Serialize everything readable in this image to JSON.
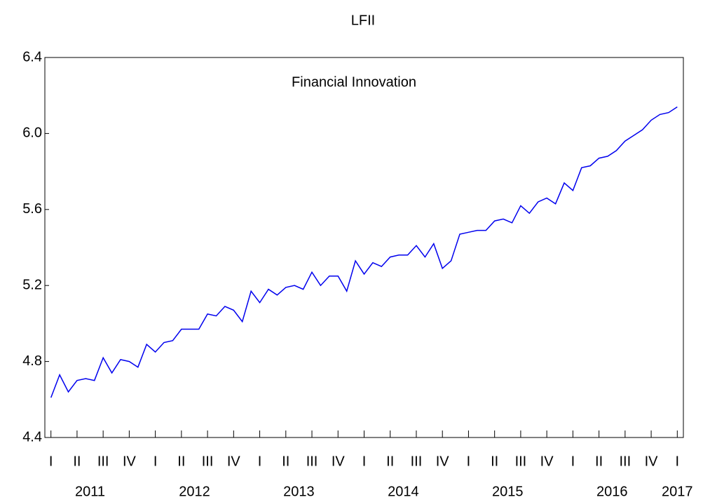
{
  "chart_data": {
    "type": "line",
    "title": "LFII",
    "annotation": "Financial Innovation",
    "series": [
      {
        "name": "LFII",
        "color": "#0000ee",
        "values": [
          4.61,
          4.73,
          4.64,
          4.7,
          4.71,
          4.7,
          4.82,
          4.74,
          4.81,
          4.8,
          4.77,
          4.89,
          4.85,
          4.9,
          4.91,
          4.97,
          4.97,
          4.97,
          5.05,
          5.04,
          5.09,
          5.07,
          5.01,
          5.17,
          5.11,
          5.18,
          5.15,
          5.19,
          5.2,
          5.18,
          5.27,
          5.2,
          5.25,
          5.25,
          5.17,
          5.33,
          5.26,
          5.32,
          5.3,
          5.35,
          5.36,
          5.36,
          5.41,
          5.35,
          5.42,
          5.29,
          5.33,
          5.47,
          5.48,
          5.49,
          5.49,
          5.54,
          5.55,
          5.53,
          5.62,
          5.58,
          5.64,
          5.66,
          5.63,
          5.74,
          5.7,
          5.82,
          5.83,
          5.87,
          5.88,
          5.91,
          5.96,
          5.99,
          6.02,
          6.07,
          6.1,
          6.11,
          6.14
        ]
      }
    ],
    "xlim": [
      -0.7,
      72.7
    ],
    "xticks": [
      {
        "value": 0,
        "label": "I"
      },
      {
        "value": 3,
        "label": "II"
      },
      {
        "value": 6,
        "label": "III"
      },
      {
        "value": 9,
        "label": "IV"
      },
      {
        "value": 12,
        "label": "I"
      },
      {
        "value": 15,
        "label": "II"
      },
      {
        "value": 18,
        "label": "III"
      },
      {
        "value": 21,
        "label": "IV"
      },
      {
        "value": 24,
        "label": "I"
      },
      {
        "value": 27,
        "label": "II"
      },
      {
        "value": 30,
        "label": "III"
      },
      {
        "value": 33,
        "label": "IV"
      },
      {
        "value": 36,
        "label": "I"
      },
      {
        "value": 39,
        "label": "II"
      },
      {
        "value": 42,
        "label": "III"
      },
      {
        "value": 45,
        "label": "IV"
      },
      {
        "value": 48,
        "label": "I"
      },
      {
        "value": 51,
        "label": "II"
      },
      {
        "value": 54,
        "label": "III"
      },
      {
        "value": 57,
        "label": "IV"
      },
      {
        "value": 60,
        "label": "I"
      },
      {
        "value": 63,
        "label": "II"
      },
      {
        "value": 66,
        "label": "III"
      },
      {
        "value": 69,
        "label": "IV"
      },
      {
        "value": 72,
        "label": "I"
      }
    ],
    "year_labels": [
      {
        "value": 4.5,
        "label": "2011"
      },
      {
        "value": 16.5,
        "label": "2012"
      },
      {
        "value": 28.5,
        "label": "2013"
      },
      {
        "value": 40.5,
        "label": "2014"
      },
      {
        "value": 52.5,
        "label": "2015"
      },
      {
        "value": 64.5,
        "label": "2016"
      },
      {
        "value": 72,
        "label": "2017"
      }
    ],
    "ylim": [
      4.4,
      6.4
    ],
    "yticks": [
      {
        "value": 4.4,
        "label": "4.4"
      },
      {
        "value": 4.8,
        "label": "4.8"
      },
      {
        "value": 5.2,
        "label": "5.2"
      },
      {
        "value": 5.6,
        "label": "5.6"
      },
      {
        "value": 6.0,
        "label": "6.0"
      },
      {
        "value": 6.4,
        "label": "6.4"
      }
    ],
    "grid": false
  }
}
